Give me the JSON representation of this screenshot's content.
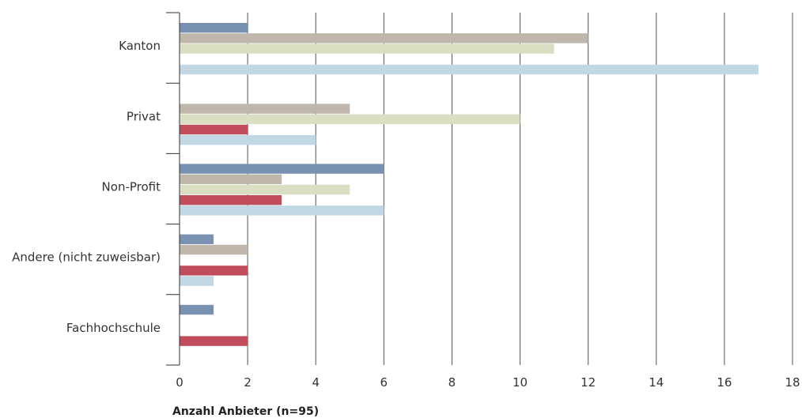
{
  "chart_data": {
    "type": "bar",
    "orientation": "horizontal",
    "categories": [
      "Kanton",
      "Privat",
      "Non-Profit",
      "Andere (nicht zuweisbar)",
      "Fachhochschule"
    ],
    "series": [
      {
        "color": "#7a92b1",
        "values": [
          2,
          0,
          6,
          1,
          1
        ]
      },
      {
        "color": "#bfb6ac",
        "values": [
          12,
          5,
          3,
          2,
          0
        ]
      },
      {
        "color": "#dadfc3",
        "values": [
          11,
          10,
          5,
          0,
          0
        ]
      },
      {
        "color": "#c14c5b",
        "values": [
          0,
          2,
          3,
          2,
          2
        ]
      },
      {
        "color": "#c2d7e4",
        "values": [
          17,
          4,
          6,
          1,
          0
        ]
      }
    ],
    "xlim": [
      0,
      18
    ],
    "xticks": [
      0,
      2,
      4,
      6,
      8,
      10,
      12,
      14,
      16,
      18
    ],
    "xtick_labels": [
      "0",
      "2",
      "4",
      "6",
      "8",
      "10",
      "12",
      "14",
      "16",
      "18"
    ],
    "xlabel": "Anzahl Anbieter (n=95)",
    "ylabel": "",
    "title": "",
    "grid": "vertical",
    "legend": "none"
  }
}
